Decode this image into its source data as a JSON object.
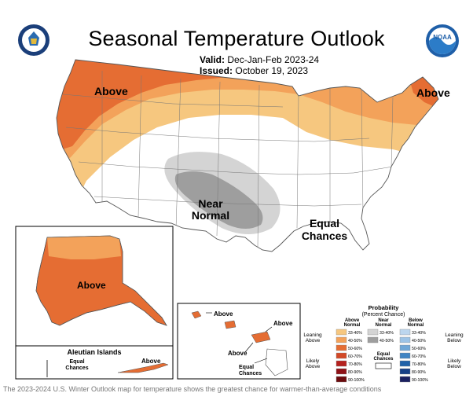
{
  "header": {
    "title": "Seasonal Temperature Outlook",
    "valid_label": "Valid:",
    "valid_value": "Dec-Jan-Feb 2023-24",
    "issued_label": "Issued:",
    "issued_value": "October 19, 2023"
  },
  "logos": {
    "left": "doc-seal-icon",
    "right": "noaa-logo-icon",
    "right_text": "NOAA"
  },
  "map_labels": {
    "above_west": "Above",
    "above_maine": "Above",
    "near_normal_1": "Near",
    "near_normal_2": "Normal",
    "equal_1": "Equal",
    "equal_2": "Chances",
    "alaska_above": "Above",
    "aleutian_title": "Aleutian Islands",
    "aleutian_equal_1": "Equal",
    "aleutian_equal_2": "Chances",
    "aleutian_above": "Above",
    "hawaii_above_1": "Above",
    "hawaii_above_2": "Above",
    "hawaii_above_3": "Above",
    "hawaii_equal_1": "Equal",
    "hawaii_equal_2": "Chances"
  },
  "legend": {
    "title_1": "Probability",
    "title_2": "(Percent Chance)",
    "col_above_1": "Above",
    "col_above_2": "Normal",
    "col_near_1": "Near",
    "col_near_2": "Normal",
    "col_below_1": "Below",
    "col_below_2": "Normal",
    "leaning_above_1": "Leaning",
    "leaning_above_2": "Above",
    "likely_above_1": "Likely",
    "likely_above_2": "Above",
    "leaning_below_1": "Leaning",
    "leaning_below_2": "Below",
    "likely_below_1": "Likely",
    "likely_below_2": "Below",
    "equal_1": "Equal",
    "equal_2": "Chances",
    "above_rows": [
      "33-40%",
      "40-50%",
      "50-60%",
      "60-70%",
      "70-80%",
      "80-90%",
      "90-100%"
    ],
    "near_rows": [
      "33-40%",
      "40-50%"
    ],
    "below_rows": [
      "33-40%",
      "40-50%",
      "50-60%",
      "60-70%",
      "70-80%",
      "80-90%",
      "90-100%"
    ],
    "above_colors": [
      "#f6c77f",
      "#f3a25a",
      "#e56d33",
      "#d24826",
      "#b5211e",
      "#8e1116",
      "#6b0a0d"
    ],
    "near_colors": [
      "#d4d4d4",
      "#9e9e9e"
    ],
    "below_colors": [
      "#bcd6ee",
      "#9cc3e6",
      "#6fa7d7",
      "#3f84c3",
      "#2061a8",
      "#163f86",
      "#1a2060"
    ]
  },
  "caption": "The 2023-2024 U.S. Winter Outlook map for temperature shows the greatest chance for warmer-than-average conditions"
}
